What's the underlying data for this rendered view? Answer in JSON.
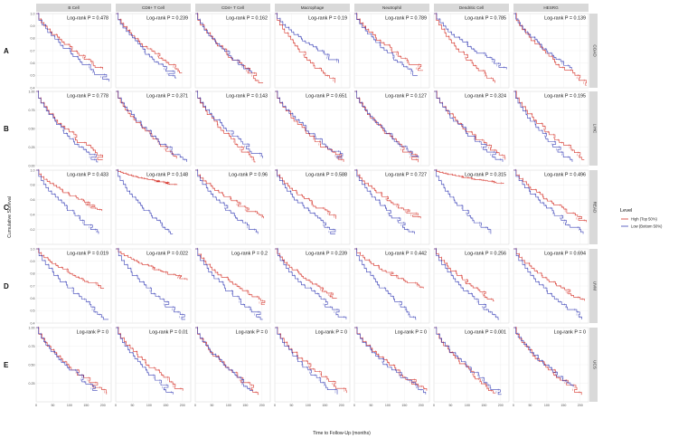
{
  "panel_labels": [
    "A",
    "B",
    "C",
    "D",
    "E"
  ],
  "chart_data": {
    "type": "line",
    "subtype": "kaplan-meier grid",
    "x_label": "Time to Follow-Up (months)",
    "y_label": "Cumulative Survival",
    "x_ticks": [
      "0",
      "50",
      "100",
      "150",
      "200"
    ],
    "x_range": [
      0,
      225
    ],
    "columns": [
      "B Cell",
      "CD8+ T Cell",
      "CD4+ T Cell",
      "Macrophage",
      "Neutrophil",
      "Dendritic Cell",
      "HESRG"
    ],
    "legend": {
      "title": "Level",
      "placement": "right",
      "entries": [
        {
          "label": "High (Top 50%)",
          "color": "#d6342b"
        },
        {
          "label": "Low (Bottom 50%)",
          "color": "#3c43b8"
        }
      ]
    },
    "rows": [
      {
        "cohort": "COAD",
        "ylim": [
          0.4,
          1.0
        ],
        "y_ticks": [
          "1.0",
          "0.9",
          "0.8",
          "0.7",
          "0.6",
          "0.5",
          "0.4"
        ],
        "pvalues": [
          "Log-rank P = 0.478",
          "Log-rank P = 0.239",
          "Log-rank P = 0.162",
          "Log-rank P = 0.19",
          "Log-rank P = 0.789",
          "Log-rank P = 0.785",
          "Log-rank P = 0.139"
        ],
        "high_end": [
          0.55,
          0.52,
          0.44,
          0.44,
          0.54,
          0.44,
          0.42
        ],
        "low_end": [
          0.45,
          0.48,
          0.52,
          0.6,
          0.5,
          0.55,
          0.55
        ]
      },
      {
        "cohort": "LIHC",
        "ylim": [
          0.0,
          1.0
        ],
        "y_ticks": [
          "1.00",
          "0.75",
          "0.50",
          "0.25",
          "0.00"
        ],
        "pvalues": [
          "Log-rank P = 0.778",
          "Log-rank P = 0.371",
          "Log-rank P = 0.143",
          "Log-rank P = 0.651",
          "Log-rank P = 0.127",
          "Log-rank P = 0.324",
          "Log-rank P = 0.195"
        ],
        "high_end": [
          0.08,
          0.1,
          0.05,
          0.05,
          0.05,
          0.08,
          0.08
        ],
        "low_end": [
          0.05,
          0.05,
          0.1,
          0.1,
          0.1,
          0.05,
          0.05
        ]
      },
      {
        "cohort": "READ",
        "ylim": [
          0.0,
          1.0
        ],
        "y_ticks": [
          "1.0",
          "0.8",
          "0.6",
          "0.4",
          "0.2"
        ],
        "pvalues": [
          "Log-rank P = 0.433",
          "Log-rank P = 0.148",
          "Log-rank P = 0.96",
          "Log-rank P = 0.588",
          "Log-rank P = 0.727",
          "Log-rank P = 0.315",
          "Log-rank P = 0.496"
        ],
        "high_end": [
          0.45,
          0.8,
          0.35,
          0.35,
          0.35,
          0.82,
          0.3
        ],
        "low_end": [
          0.14,
          0.14,
          0.14,
          0.14,
          0.14,
          0.14,
          0.14
        ]
      },
      {
        "cohort": "UVM",
        "ylim": [
          0.4,
          1.0
        ],
        "y_ticks": [
          "1.0",
          "0.9",
          "0.8",
          "0.7",
          "0.6",
          "0.5",
          "0.4"
        ],
        "pvalues": [
          "Log-rank P = 0.019",
          "Log-rank P = 0.022",
          "Log-rank P = 0.2",
          "Log-rank P = 0.239",
          "Log-rank P = 0.442",
          "Log-rank P = 0.256",
          "Log-rank P = 0.694"
        ],
        "high_end": [
          0.68,
          0.75,
          0.55,
          0.6,
          0.68,
          0.58,
          0.58
        ],
        "low_end": [
          0.43,
          0.43,
          0.43,
          0.43,
          0.43,
          0.43,
          0.43
        ]
      },
      {
        "cohort": "UCS",
        "ylim": [
          0.0,
          1.0
        ],
        "y_ticks": [
          "1.00",
          "0.75",
          "0.50",
          "0.25"
        ],
        "pvalues": [
          "Log-rank P = 0",
          "Log-rank P = 0.01",
          "Log-rank P = 0",
          "Log-rank P = 0",
          "Log-rank P = 0",
          "Log-rank P = 0.001",
          "Log-rank P = 0"
        ],
        "high_end": [
          0.1,
          0.15,
          0.1,
          0.12,
          0.15,
          0.12,
          0.1
        ],
        "low_end": [
          0.15,
          0.1,
          0.15,
          0.1,
          0.1,
          0.1,
          0.2
        ]
      }
    ]
  }
}
